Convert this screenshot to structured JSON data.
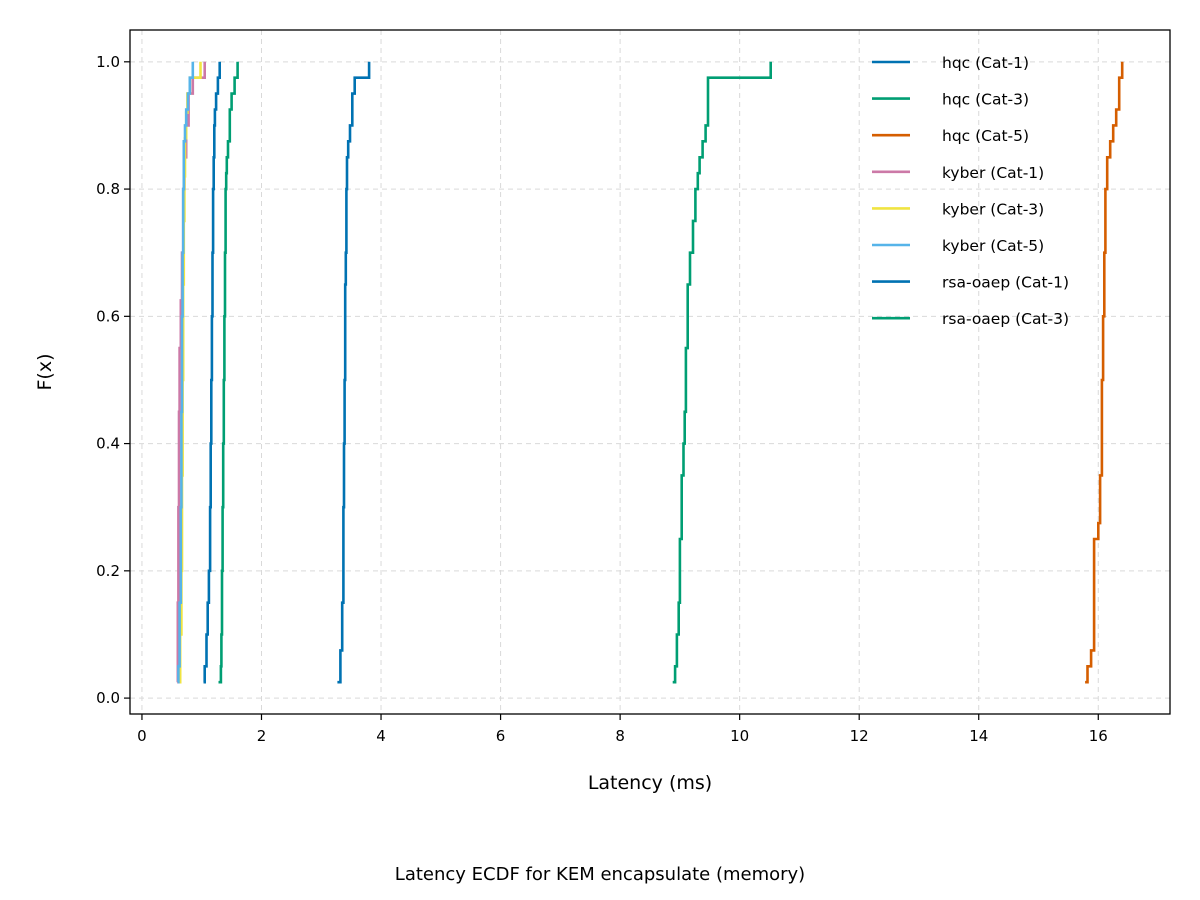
{
  "caption": "Latency ECDF for KEM encapsulate (memory)",
  "chart_data": {
    "type": "line",
    "step": true,
    "xlabel": "Latency (ms)",
    "ylabel": "F(x)",
    "xlim": [
      -0.2,
      17.2
    ],
    "ylim": [
      -0.025,
      1.05
    ],
    "xticks": [
      0,
      2,
      4,
      6,
      8,
      10,
      12,
      14,
      16
    ],
    "yticks": [
      0.0,
      0.2,
      0.4,
      0.6,
      0.8,
      1.0
    ],
    "xtick_labels": [
      "0",
      "2",
      "4",
      "6",
      "8",
      "10",
      "12",
      "14",
      "16"
    ],
    "ytick_labels": [
      "0.0",
      "0.2",
      "0.4",
      "0.6",
      "0.8",
      "1.0"
    ],
    "grid": true,
    "legend_position": "top-right",
    "series": [
      {
        "name": "hqc (Cat-1)",
        "color": "#0072B2",
        "x": [
          1.03,
          1.05,
          1.08,
          1.1,
          1.12,
          1.14,
          1.15,
          1.16,
          1.17,
          1.18,
          1.19,
          1.2,
          1.21,
          1.22,
          1.24,
          1.27,
          1.3
        ],
        "y": [
          0.025,
          0.05,
          0.1,
          0.15,
          0.2,
          0.3,
          0.4,
          0.5,
          0.6,
          0.7,
          0.8,
          0.85,
          0.9,
          0.925,
          0.95,
          0.975,
          1.0
        ]
      },
      {
        "name": "hqc (Cat-3)",
        "color": "#009E73",
        "x": [
          1.28,
          1.32,
          1.33,
          1.34,
          1.35,
          1.36,
          1.37,
          1.38,
          1.39,
          1.4,
          1.41,
          1.42,
          1.44,
          1.47,
          1.5,
          1.55,
          1.6
        ],
        "y": [
          0.025,
          0.05,
          0.1,
          0.2,
          0.3,
          0.4,
          0.5,
          0.6,
          0.7,
          0.8,
          0.825,
          0.85,
          0.875,
          0.925,
          0.95,
          0.975,
          1.0
        ]
      },
      {
        "name": "hqc (Cat-5)",
        "color": "#D55E00",
        "x": [
          15.78,
          15.82,
          15.88,
          15.93,
          16.0,
          16.03,
          16.06,
          16.08,
          16.1,
          16.12,
          16.15,
          16.2,
          16.25,
          16.3,
          16.35,
          16.4
        ],
        "y": [
          0.025,
          0.05,
          0.075,
          0.25,
          0.275,
          0.35,
          0.5,
          0.6,
          0.7,
          0.8,
          0.85,
          0.875,
          0.9,
          0.925,
          0.975,
          1.0
        ]
      },
      {
        "name": "kyber (Cat-1)",
        "color": "#CC79A7",
        "x": [
          0.59,
          0.6,
          0.61,
          0.62,
          0.63,
          0.65,
          0.67,
          0.69,
          0.71,
          0.74,
          0.78,
          0.85,
          0.95,
          1.05
        ],
        "y": [
          0.025,
          0.15,
          0.3,
          0.45,
          0.55,
          0.625,
          0.7,
          0.8,
          0.85,
          0.9,
          0.95,
          0.975,
          0.975,
          1.0
        ]
      },
      {
        "name": "kyber (Cat-3)",
        "color": "#F0E442",
        "x": [
          0.62,
          0.64,
          0.66,
          0.67,
          0.68,
          0.69,
          0.7,
          0.71,
          0.72,
          0.74,
          0.76,
          0.8,
          0.88,
          0.98
        ],
        "y": [
          0.025,
          0.1,
          0.2,
          0.35,
          0.5,
          0.65,
          0.75,
          0.82,
          0.88,
          0.92,
          0.95,
          0.975,
          0.975,
          1.0
        ]
      },
      {
        "name": "kyber (Cat-5)",
        "color": "#56B4E9",
        "x": [
          0.6,
          0.61,
          0.63,
          0.65,
          0.66,
          0.67,
          0.68,
          0.69,
          0.7,
          0.72,
          0.74,
          0.77,
          0.8,
          0.85
        ],
        "y": [
          0.025,
          0.05,
          0.15,
          0.3,
          0.45,
          0.6,
          0.7,
          0.8,
          0.875,
          0.9,
          0.925,
          0.95,
          0.975,
          1.0
        ]
      },
      {
        "name": "rsa-oaep (Cat-1)",
        "color": "#0072B2",
        "x": [
          3.27,
          3.32,
          3.35,
          3.37,
          3.38,
          3.39,
          3.4,
          3.41,
          3.42,
          3.43,
          3.45,
          3.48,
          3.52,
          3.56,
          3.8
        ],
        "y": [
          0.025,
          0.075,
          0.15,
          0.3,
          0.4,
          0.5,
          0.65,
          0.7,
          0.8,
          0.85,
          0.875,
          0.9,
          0.95,
          0.975,
          1.0
        ]
      },
      {
        "name": "rsa-oaep (Cat-3)",
        "color": "#009E73",
        "x": [
          8.88,
          8.92,
          8.95,
          8.98,
          9.0,
          9.03,
          9.06,
          9.08,
          9.1,
          9.13,
          9.17,
          9.22,
          9.26,
          9.3,
          9.33,
          9.38,
          9.43,
          9.47,
          10.52
        ],
        "y": [
          0.025,
          0.05,
          0.1,
          0.15,
          0.25,
          0.35,
          0.4,
          0.45,
          0.55,
          0.65,
          0.7,
          0.75,
          0.8,
          0.825,
          0.85,
          0.875,
          0.9,
          0.975,
          1.0
        ]
      }
    ]
  }
}
